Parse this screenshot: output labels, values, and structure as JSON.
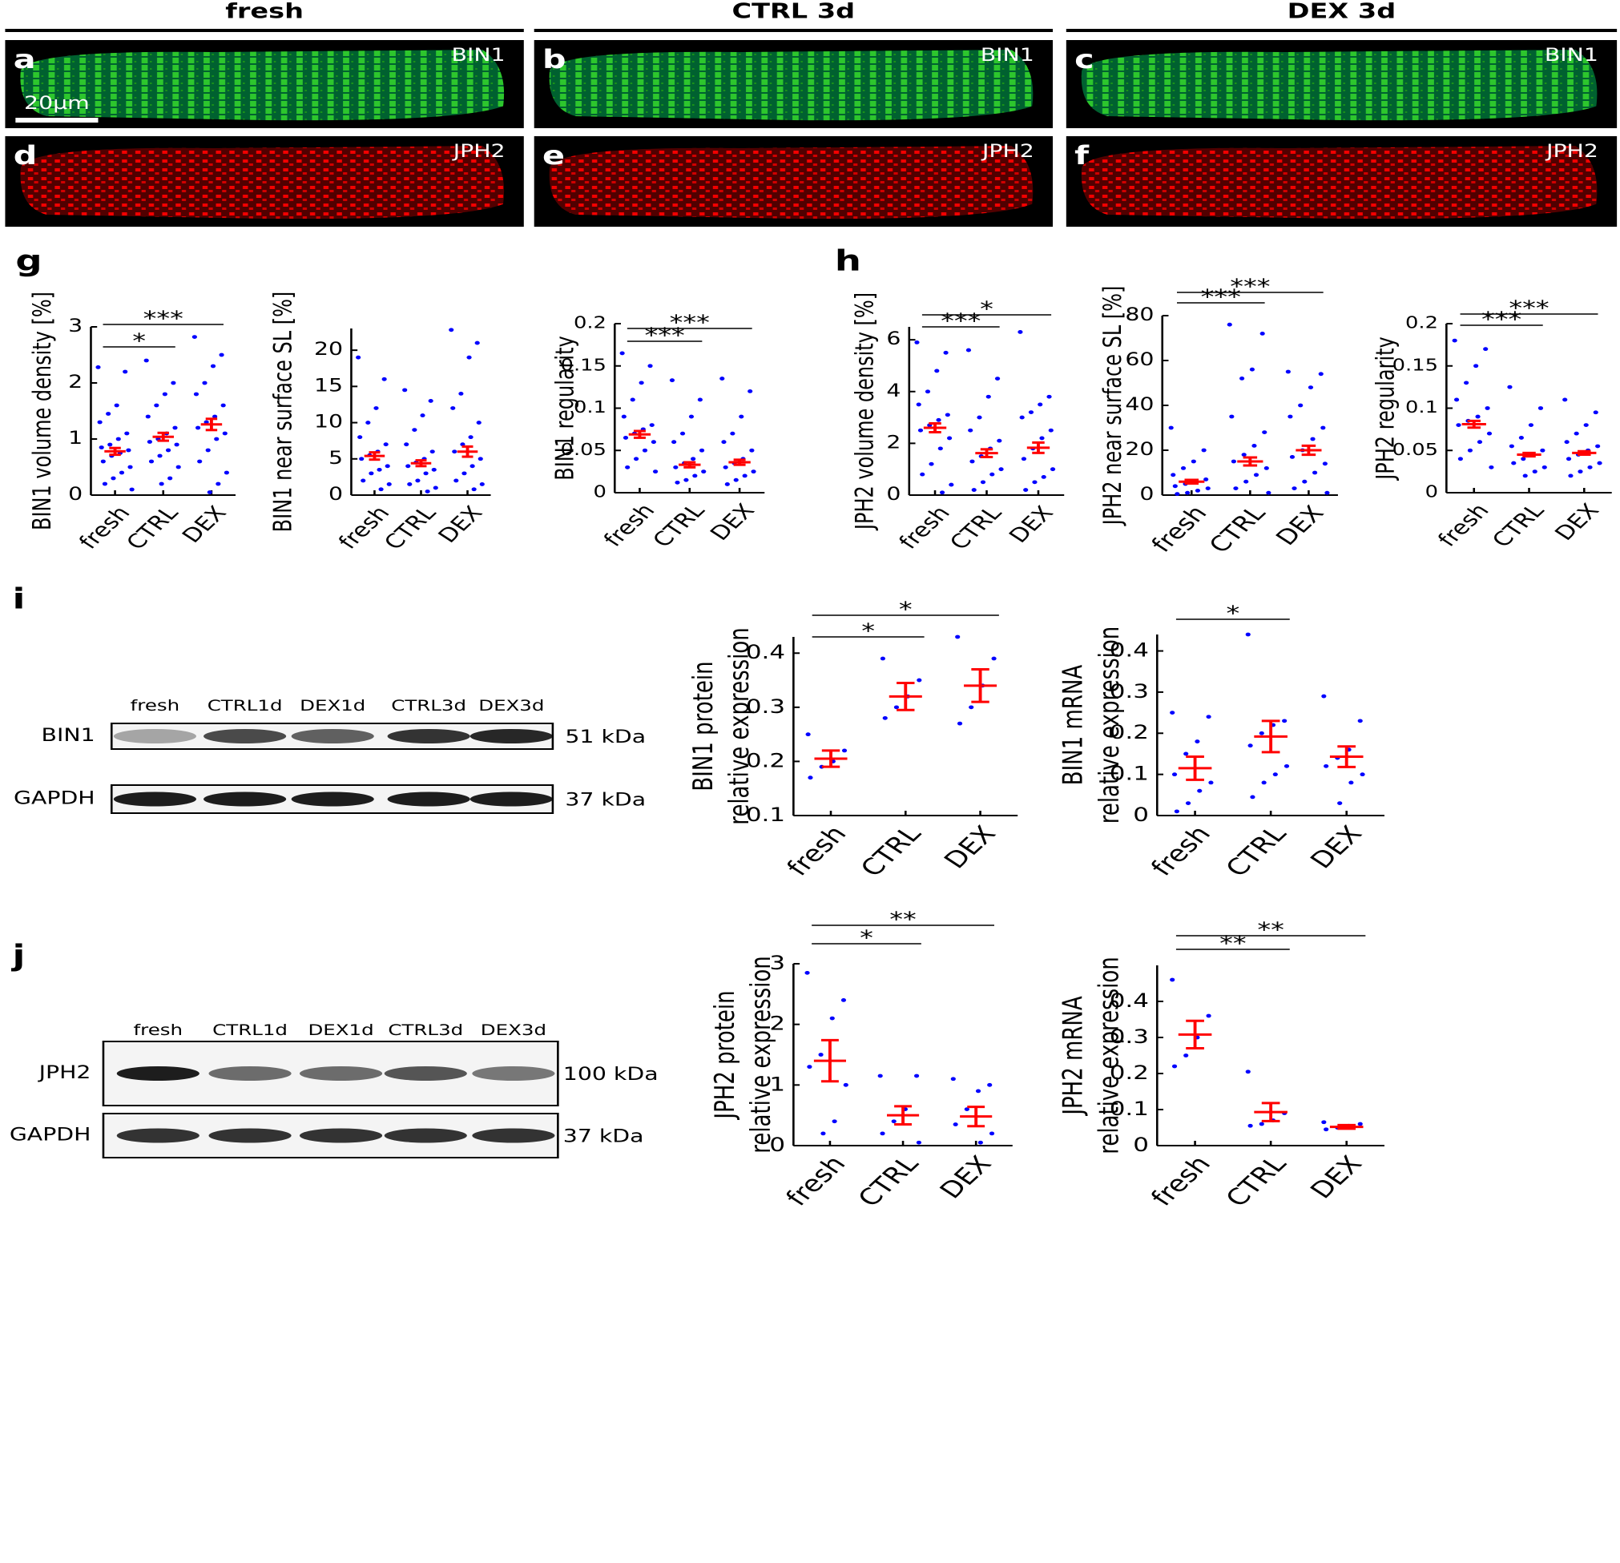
{
  "columns": [
    "fresh",
    "CTRL 3d",
    "DEX 3d"
  ],
  "images": [
    {
      "panel": "a",
      "marker": "BIN1"
    },
    {
      "panel": "b",
      "marker": "BIN1"
    },
    {
      "panel": "c",
      "marker": "BIN1"
    },
    {
      "panel": "d",
      "marker": "JPH2"
    },
    {
      "panel": "e",
      "marker": "JPH2"
    },
    {
      "panel": "f",
      "marker": "JPH2"
    }
  ],
  "scale_bar": "20µm",
  "blots": [
    {
      "panel": "i",
      "lanes": [
        "fresh",
        "CTRL1d",
        "DEX1d",
        "CTRL3d",
        "DEX3d"
      ],
      "rows": [
        {
          "name": "BIN1",
          "size": "51 kDa"
        },
        {
          "name": "GAPDH",
          "size": "37 kDa"
        }
      ]
    },
    {
      "panel": "j",
      "lanes": [
        "fresh",
        "CTRL1d",
        "DEX1d",
        "CTRL3d",
        "DEX3d"
      ],
      "rows": [
        {
          "name": "JPH2",
          "size": "100 kDa"
        },
        {
          "name": "GAPDH",
          "size": "37 kDa"
        }
      ]
    }
  ],
  "chart_data": [
    {
      "type": "scatter",
      "panel": "g",
      "ylabel": "BIN1 volume density [%]",
      "categories": [
        "fresh",
        "CTRL",
        "DEX"
      ],
      "ylim": [
        0,
        3
      ],
      "yticks": [
        0,
        1,
        2,
        3
      ],
      "point_color": "#0000ff",
      "mean_color": "#ff0000",
      "groups": [
        {
          "points": [
            2.28,
            2.2,
            1.6,
            1.45,
            1.3,
            1.1,
            1.0,
            0.9,
            0.85,
            0.8,
            0.75,
            0.7,
            0.6,
            0.5,
            0.4,
            0.3,
            0.2,
            0.1
          ],
          "mean": 0.78,
          "sem": 0.06
        },
        {
          "points": [
            2.4,
            2.0,
            1.8,
            1.6,
            1.4,
            1.2,
            1.1,
            1.0,
            0.95,
            0.9,
            0.8,
            0.7,
            0.6,
            0.5,
            0.3,
            0.2
          ],
          "mean": 1.04,
          "sem": 0.07
        },
        {
          "points": [
            2.82,
            2.5,
            2.3,
            2.0,
            1.8,
            1.6,
            1.4,
            1.3,
            1.2,
            1.1,
            1.0,
            0.8,
            0.6,
            0.4,
            0.2,
            0.05
          ],
          "mean": 1.26,
          "sem": 0.1
        }
      ],
      "significance": [
        {
          "between": [
            0,
            1
          ],
          "label": "*"
        },
        {
          "between": [
            0,
            2
          ],
          "label": "***"
        }
      ]
    },
    {
      "type": "scatter",
      "ylabel": "BIN1 near surface SL [%]",
      "categories": [
        "fresh",
        "CTRL",
        "DEX"
      ],
      "ylim": [
        0,
        23
      ],
      "yticks": [
        0,
        5,
        10,
        15,
        20
      ],
      "point_color": "#0000ff",
      "mean_color": "#ff0000",
      "groups": [
        {
          "points": [
            19,
            16,
            12,
            10,
            8,
            7,
            6,
            5.5,
            5,
            4,
            3.5,
            3,
            2,
            1.5,
            0.8
          ],
          "mean": 5.4,
          "sem": 0.5
        },
        {
          "points": [
            14.5,
            13,
            11,
            9,
            7,
            6,
            5,
            4.5,
            4,
            3.5,
            3,
            2,
            1.5,
            1,
            0.5
          ],
          "mean": 4.4,
          "sem": 0.4
        },
        {
          "points": [
            22.8,
            21,
            19,
            14,
            12,
            10,
            8,
            7,
            6,
            5,
            4,
            3,
            2,
            1.5,
            0.8
          ],
          "mean": 6.0,
          "sem": 0.7
        }
      ],
      "significance": []
    },
    {
      "type": "scatter",
      "ylabel": "BIN1 regularity",
      "categories": [
        "fresh",
        "CTRL",
        "DEX"
      ],
      "ylim": [
        0,
        0.2
      ],
      "yticks": [
        0,
        0.05,
        0.1,
        0.15,
        0.2
      ],
      "point_color": "#0000ff",
      "mean_color": "#ff0000",
      "groups": [
        {
          "points": [
            0.165,
            0.15,
            0.13,
            0.11,
            0.09,
            0.08,
            0.075,
            0.07,
            0.065,
            0.06,
            0.05,
            0.04,
            0.03,
            0.025
          ],
          "mean": 0.069,
          "sem": 0.004
        },
        {
          "points": [
            0.133,
            0.11,
            0.09,
            0.07,
            0.06,
            0.05,
            0.04,
            0.035,
            0.03,
            0.025,
            0.02,
            0.015,
            0.012
          ],
          "mean": 0.033,
          "sem": 0.003
        },
        {
          "points": [
            0.135,
            0.12,
            0.09,
            0.07,
            0.06,
            0.05,
            0.04,
            0.035,
            0.03,
            0.025,
            0.02,
            0.015,
            0.01
          ],
          "mean": 0.036,
          "sem": 0.003
        }
      ],
      "significance": [
        {
          "between": [
            0,
            1
          ],
          "label": "***"
        },
        {
          "between": [
            0,
            2
          ],
          "label": "***"
        }
      ]
    },
    {
      "type": "scatter",
      "panel": "h",
      "ylabel": "JPH2 volume density [%]",
      "categories": [
        "fresh",
        "CTRL",
        "DEX"
      ],
      "ylim": [
        0,
        6.5
      ],
      "yticks": [
        0,
        2,
        4,
        6
      ],
      "point_color": "#0000ff",
      "mean_color": "#ff0000",
      "groups": [
        {
          "points": [
            5.9,
            5.5,
            4.8,
            4.0,
            3.5,
            3.1,
            2.9,
            2.7,
            2.5,
            2.2,
            1.8,
            1.2,
            0.8,
            0.4,
            0.1
          ],
          "mean": 2.6,
          "sem": 0.17
        },
        {
          "points": [
            5.6,
            4.5,
            3.8,
            3.0,
            2.5,
            2.1,
            1.8,
            1.5,
            1.3,
            1.0,
            0.8,
            0.5,
            0.2
          ],
          "mean": 1.62,
          "sem": 0.15
        },
        {
          "points": [
            6.3,
            3.8,
            3.5,
            3.2,
            3.0,
            2.5,
            2.2,
            1.8,
            1.4,
            1.0,
            0.7,
            0.5,
            0.2
          ],
          "mean": 1.83,
          "sem": 0.2
        }
      ],
      "significance": [
        {
          "between": [
            0,
            1
          ],
          "label": "***"
        },
        {
          "between": [
            0,
            2
          ],
          "label": "*"
        }
      ]
    },
    {
      "type": "scatter",
      "ylabel": "JPH2 near surface SL [%]",
      "categories": [
        "fresh",
        "CTRL",
        "DEX"
      ],
      "ylim": [
        0,
        80
      ],
      "yticks": [
        0,
        20,
        40,
        60,
        80
      ],
      "point_color": "#0000ff",
      "mean_color": "#ff0000",
      "groups": [
        {
          "points": [
            30,
            20,
            15,
            12,
            9,
            7,
            6,
            5,
            4,
            3,
            2,
            1,
            0.5
          ],
          "mean": 6,
          "sem": 0.8
        },
        {
          "points": [
            76,
            72,
            56,
            52,
            35,
            28,
            22,
            18,
            15,
            12,
            9,
            6,
            3,
            1
          ],
          "mean": 15,
          "sem": 1.8
        },
        {
          "points": [
            55,
            54,
            48,
            40,
            35,
            30,
            25,
            20,
            17,
            14,
            10,
            6,
            3,
            1
          ],
          "mean": 20,
          "sem": 2
        }
      ],
      "significance": [
        {
          "between": [
            0,
            1
          ],
          "label": "***"
        },
        {
          "between": [
            0,
            2
          ],
          "label": "***"
        }
      ]
    },
    {
      "type": "scatter",
      "ylabel": "JPH2 regularity",
      "categories": [
        "fresh",
        "CTRL",
        "DEX"
      ],
      "ylim": [
        0,
        0.2
      ],
      "yticks": [
        0,
        0.05,
        0.1,
        0.15,
        0.2
      ],
      "point_color": "#0000ff",
      "mean_color": "#ff0000",
      "groups": [
        {
          "points": [
            0.18,
            0.17,
            0.15,
            0.13,
            0.11,
            0.1,
            0.09,
            0.085,
            0.08,
            0.07,
            0.06,
            0.05,
            0.04,
            0.03
          ],
          "mean": 0.081,
          "sem": 0.004
        },
        {
          "points": [
            0.125,
            0.1,
            0.08,
            0.065,
            0.055,
            0.05,
            0.045,
            0.04,
            0.035,
            0.03,
            0.025,
            0.02
          ],
          "mean": 0.045,
          "sem": 0.002
        },
        {
          "points": [
            0.11,
            0.095,
            0.08,
            0.07,
            0.06,
            0.055,
            0.05,
            0.045,
            0.04,
            0.035,
            0.03,
            0.025,
            0.02
          ],
          "mean": 0.047,
          "sem": 0.002
        }
      ],
      "significance": [
        {
          "between": [
            0,
            1
          ],
          "label": "***"
        },
        {
          "between": [
            0,
            2
          ],
          "label": "***"
        }
      ]
    },
    {
      "type": "scatter",
      "ylabel_lines": [
        "BIN1 protein",
        "relative expression"
      ],
      "categories": [
        "fresh",
        "CTRL",
        "DEX"
      ],
      "ylim": [
        0.1,
        0.43
      ],
      "yticks": [
        0.1,
        0.2,
        0.3,
        0.4
      ],
      "point_color": "#0000ff",
      "mean_color": "#ff0000",
      "groups": [
        {
          "points": [
            0.25,
            0.22,
            0.2,
            0.19,
            0.17
          ],
          "mean": 0.205,
          "sem": 0.015
        },
        {
          "points": [
            0.39,
            0.35,
            0.32,
            0.3,
            0.28
          ],
          "mean": 0.32,
          "sem": 0.025
        },
        {
          "points": [
            0.43,
            0.39,
            0.34,
            0.3,
            0.27
          ],
          "mean": 0.34,
          "sem": 0.03
        }
      ],
      "significance": [
        {
          "between": [
            0,
            1
          ],
          "label": "*"
        },
        {
          "between": [
            0,
            2
          ],
          "label": "*"
        }
      ]
    },
    {
      "type": "scatter",
      "ylabel_lines": [
        "BIN1 mRNA",
        "relative expression"
      ],
      "categories": [
        "fresh",
        "CTRL",
        "DEX"
      ],
      "ylim": [
        0,
        0.44
      ],
      "yticks": [
        0,
        0.1,
        0.2,
        0.3,
        0.4
      ],
      "point_color": "#0000ff",
      "mean_color": "#ff0000",
      "groups": [
        {
          "points": [
            0.25,
            0.24,
            0.18,
            0.15,
            0.1,
            0.08,
            0.06,
            0.03,
            0.01
          ],
          "mean": 0.115,
          "sem": 0.028
        },
        {
          "points": [
            0.44,
            0.23,
            0.22,
            0.2,
            0.17,
            0.12,
            0.1,
            0.08,
            0.045
          ],
          "mean": 0.192,
          "sem": 0.038
        },
        {
          "points": [
            0.29,
            0.23,
            0.16,
            0.14,
            0.12,
            0.1,
            0.08,
            0.03
          ],
          "mean": 0.143,
          "sem": 0.025
        }
      ],
      "significance": [
        {
          "between": [
            0,
            1
          ],
          "label": "*"
        }
      ]
    },
    {
      "type": "scatter",
      "ylabel_lines": [
        "JPH2 protein",
        "relative expression"
      ],
      "categories": [
        "fresh",
        "CTRL",
        "DEX"
      ],
      "ylim": [
        0,
        3
      ],
      "yticks": [
        0,
        1,
        2,
        3
      ],
      "point_color": "#0000ff",
      "mean_color": "#ff0000",
      "groups": [
        {
          "points": [
            2.85,
            2.4,
            2.1,
            1.5,
            1.3,
            1.0,
            0.4,
            0.2
          ],
          "mean": 1.4,
          "sem": 0.34
        },
        {
          "points": [
            1.15,
            1.15,
            0.6,
            0.4,
            0.2,
            0.05
          ],
          "mean": 0.5,
          "sem": 0.15
        },
        {
          "points": [
            1.1,
            1.0,
            0.9,
            0.6,
            0.35,
            0.2,
            0.05
          ],
          "mean": 0.48,
          "sem": 0.16
        }
      ],
      "significance": [
        {
          "between": [
            0,
            1
          ],
          "label": "*"
        },
        {
          "between": [
            0,
            2
          ],
          "label": "**"
        }
      ]
    },
    {
      "type": "scatter",
      "ylabel_lines": [
        "JPH2 mRNA",
        "relative expression"
      ],
      "categories": [
        "fresh",
        "CTRL",
        "DEX"
      ],
      "ylim": [
        0,
        0.5
      ],
      "yticks": [
        0,
        0.1,
        0.2,
        0.3,
        0.4
      ],
      "point_color": "#0000ff",
      "mean_color": "#ff0000",
      "groups": [
        {
          "points": [
            0.46,
            0.36,
            0.3,
            0.25,
            0.22
          ],
          "mean": 0.308,
          "sem": 0.038
        },
        {
          "points": [
            0.205,
            0.09,
            0.07,
            0.06,
            0.055
          ],
          "mean": 0.093,
          "sem": 0.025
        },
        {
          "points": [
            0.065,
            0.06,
            0.055,
            0.05,
            0.045
          ],
          "mean": 0.052,
          "sem": 0.005
        }
      ],
      "significance": [
        {
          "between": [
            0,
            1
          ],
          "label": "**"
        },
        {
          "between": [
            0,
            2
          ],
          "label": "**"
        }
      ]
    }
  ]
}
